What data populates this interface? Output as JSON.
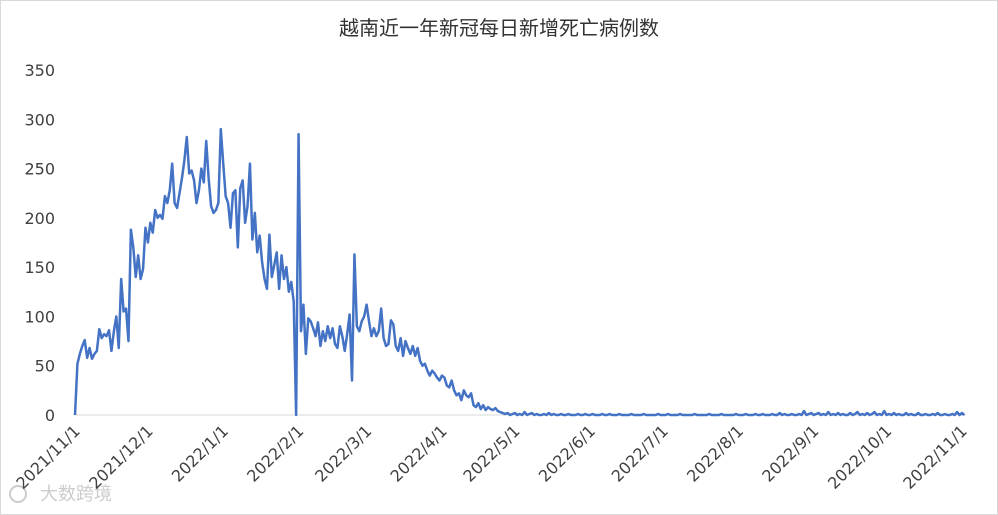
{
  "chart_data": {
    "type": "line",
    "title": "越南近一年新冠每日新增死亡病例数",
    "watermark": "大数跨境",
    "x": [
      "2021/11/1",
      "2021/11/2",
      "2021/11/3",
      "2021/11/4",
      "2021/11/5",
      "2021/11/6",
      "2021/11/7",
      "2021/11/8",
      "2021/11/9",
      "2021/11/10",
      "2021/11/11",
      "2021/11/12",
      "2021/11/13",
      "2021/11/14",
      "2021/11/15",
      "2021/11/16",
      "2021/11/17",
      "2021/11/18",
      "2021/11/19",
      "2021/11/20",
      "2021/11/21",
      "2021/11/22",
      "2021/11/23",
      "2021/11/24",
      "2021/11/25",
      "2021/11/26",
      "2021/11/27",
      "2021/11/28",
      "2021/11/29",
      "2021/11/30",
      "2021/12/1",
      "2021/12/2",
      "2021/12/3",
      "2021/12/4",
      "2021/12/5",
      "2021/12/6",
      "2021/12/7",
      "2021/12/8",
      "2021/12/9",
      "2021/12/10",
      "2021/12/11",
      "2021/12/12",
      "2021/12/13",
      "2021/12/14",
      "2021/12/15",
      "2021/12/16",
      "2021/12/17",
      "2021/12/18",
      "2021/12/19",
      "2021/12/20",
      "2021/12/21",
      "2021/12/22",
      "2021/12/23",
      "2021/12/24",
      "2021/12/25",
      "2021/12/26",
      "2021/12/27",
      "2021/12/28",
      "2021/12/29",
      "2021/12/30",
      "2021/12/31",
      "2022/1/1",
      "2022/1/2",
      "2022/1/3",
      "2022/1/4",
      "2022/1/5",
      "2022/1/6",
      "2022/1/7",
      "2022/1/8",
      "2022/1/9",
      "2022/1/10",
      "2022/1/11",
      "2022/1/12",
      "2022/1/13",
      "2022/1/14",
      "2022/1/15",
      "2022/1/16",
      "2022/1/17",
      "2022/1/18",
      "2022/1/19",
      "2022/1/20",
      "2022/1/21",
      "2022/1/22",
      "2022/1/23",
      "2022/1/24",
      "2022/1/25",
      "2022/1/26",
      "2022/1/27",
      "2022/1/28",
      "2022/1/29",
      "2022/1/30",
      "2022/1/31",
      "2022/2/1",
      "2022/2/2",
      "2022/2/3",
      "2022/2/4",
      "2022/2/5",
      "2022/2/6",
      "2022/2/7",
      "2022/2/8",
      "2022/2/9",
      "2022/2/10",
      "2022/2/11",
      "2022/2/12",
      "2022/2/13",
      "2022/2/14",
      "2022/2/15",
      "2022/2/16",
      "2022/2/17",
      "2022/2/18",
      "2022/2/19",
      "2022/2/20",
      "2022/2/21",
      "2022/2/22",
      "2022/2/23",
      "2022/2/24",
      "2022/2/25",
      "2022/2/26",
      "2022/2/27",
      "2022/2/28",
      "2022/3/1",
      "2022/3/2",
      "2022/3/3",
      "2022/3/4",
      "2022/3/5",
      "2022/3/6",
      "2022/3/7",
      "2022/3/8",
      "2022/3/9",
      "2022/3/10",
      "2022/3/11",
      "2022/3/12",
      "2022/3/13",
      "2022/3/14",
      "2022/3/15",
      "2022/3/16",
      "2022/3/17",
      "2022/3/18",
      "2022/3/19",
      "2022/3/20",
      "2022/3/21",
      "2022/3/22",
      "2022/3/23",
      "2022/3/24",
      "2022/3/25",
      "2022/3/26",
      "2022/3/27",
      "2022/3/28",
      "2022/3/29",
      "2022/3/30",
      "2022/3/31",
      "2022/4/1",
      "2022/4/2",
      "2022/4/3",
      "2022/4/4",
      "2022/4/5",
      "2022/4/6",
      "2022/4/7",
      "2022/4/8",
      "2022/4/9",
      "2022/4/10",
      "2022/4/11",
      "2022/4/12",
      "2022/4/13",
      "2022/4/14",
      "2022/4/15",
      "2022/4/16",
      "2022/4/17",
      "2022/4/18",
      "2022/4/19",
      "2022/4/20",
      "2022/4/21",
      "2022/4/22",
      "2022/4/23",
      "2022/4/24",
      "2022/4/25",
      "2022/4/26",
      "2022/4/27",
      "2022/4/28",
      "2022/4/29",
      "2022/4/30",
      "2022/5/1",
      "2022/5/2",
      "2022/5/3",
      "2022/5/4",
      "2022/5/5",
      "2022/5/6",
      "2022/5/7",
      "2022/5/8",
      "2022/5/9",
      "2022/5/10",
      "2022/5/11",
      "2022/5/12",
      "2022/5/13",
      "2022/5/14",
      "2022/5/15",
      "2022/5/16",
      "2022/5/17",
      "2022/5/18",
      "2022/5/19",
      "2022/5/20",
      "2022/5/21",
      "2022/5/22",
      "2022/5/23",
      "2022/5/24",
      "2022/5/25",
      "2022/5/26",
      "2022/5/27",
      "2022/5/28",
      "2022/5/29",
      "2022/5/30",
      "2022/5/31",
      "2022/6/1",
      "2022/6/2",
      "2022/6/3",
      "2022/6/4",
      "2022/6/5",
      "2022/6/6",
      "2022/6/7",
      "2022/6/8",
      "2022/6/9",
      "2022/6/10",
      "2022/6/11",
      "2022/6/12",
      "2022/6/13",
      "2022/6/14",
      "2022/6/15",
      "2022/6/16",
      "2022/6/17",
      "2022/6/18",
      "2022/6/19",
      "2022/6/20",
      "2022/6/21",
      "2022/6/22",
      "2022/6/23",
      "2022/6/24",
      "2022/6/25",
      "2022/6/26",
      "2022/6/27",
      "2022/6/28",
      "2022/6/29",
      "2022/6/30",
      "2022/7/1",
      "2022/7/2",
      "2022/7/3",
      "2022/7/4",
      "2022/7/5",
      "2022/7/6",
      "2022/7/7",
      "2022/7/8",
      "2022/7/9",
      "2022/7/10",
      "2022/7/11",
      "2022/7/12",
      "2022/7/13",
      "2022/7/14",
      "2022/7/15",
      "2022/7/16",
      "2022/7/17",
      "2022/7/18",
      "2022/7/19",
      "2022/7/20",
      "2022/7/21",
      "2022/7/22",
      "2022/7/23",
      "2022/7/24",
      "2022/7/25",
      "2022/7/26",
      "2022/7/27",
      "2022/7/28",
      "2022/7/29",
      "2022/7/30",
      "2022/7/31",
      "2022/8/1",
      "2022/8/2",
      "2022/8/3",
      "2022/8/4",
      "2022/8/5",
      "2022/8/6",
      "2022/8/7",
      "2022/8/8",
      "2022/8/9",
      "2022/8/10",
      "2022/8/11",
      "2022/8/12",
      "2022/8/13",
      "2022/8/14",
      "2022/8/15",
      "2022/8/16",
      "2022/8/17",
      "2022/8/18",
      "2022/8/19",
      "2022/8/20",
      "2022/8/21",
      "2022/8/22",
      "2022/8/23",
      "2022/8/24",
      "2022/8/25",
      "2022/8/26",
      "2022/8/27",
      "2022/8/28",
      "2022/8/29",
      "2022/8/30",
      "2022/8/31",
      "2022/9/1",
      "2022/9/2",
      "2022/9/3",
      "2022/9/4",
      "2022/9/5",
      "2022/9/6",
      "2022/9/7",
      "2022/9/8",
      "2022/9/9",
      "2022/9/10",
      "2022/9/11",
      "2022/9/12",
      "2022/9/13",
      "2022/9/14",
      "2022/9/15",
      "2022/9/16",
      "2022/9/17",
      "2022/9/18",
      "2022/9/19",
      "2022/9/20",
      "2022/9/21",
      "2022/9/22",
      "2022/9/23",
      "2022/9/24",
      "2022/9/25",
      "2022/9/26",
      "2022/9/27",
      "2022/9/28",
      "2022/9/29",
      "2022/9/30",
      "2022/10/1",
      "2022/10/2",
      "2022/10/3",
      "2022/10/4",
      "2022/10/5",
      "2022/10/6",
      "2022/10/7",
      "2022/10/8",
      "2022/10/9",
      "2022/10/10",
      "2022/10/11",
      "2022/10/12",
      "2022/10/13",
      "2022/10/14",
      "2022/10/15",
      "2022/10/16",
      "2022/10/17",
      "2022/10/18",
      "2022/10/19",
      "2022/10/20",
      "2022/10/21",
      "2022/10/22",
      "2022/10/23",
      "2022/10/24",
      "2022/10/25",
      "2022/10/26",
      "2022/10/27",
      "2022/10/28",
      "2022/10/29",
      "2022/10/30",
      "2022/10/31",
      "2022/11/1",
      "2022/11/2"
    ],
    "series": [
      {
        "color": "#4472c4",
        "values": [
          0,
          52,
          62,
          70,
          76,
          58,
          68,
          57,
          62,
          65,
          87,
          78,
          82,
          80,
          86,
          65,
          85,
          100,
          68,
          138,
          105,
          108,
          75,
          188,
          170,
          140,
          162,
          138,
          148,
          190,
          175,
          195,
          185,
          208,
          200,
          203,
          199,
          222,
          215,
          228,
          255,
          215,
          210,
          225,
          240,
          258,
          282,
          245,
          248,
          238,
          215,
          228,
          250,
          236,
          278,
          240,
          212,
          205,
          208,
          215,
          290,
          255,
          222,
          215,
          190,
          225,
          228,
          170,
          230,
          238,
          195,
          212,
          255,
          178,
          205,
          165,
          182,
          155,
          138,
          128,
          183,
          140,
          152,
          165,
          128,
          162,
          138,
          150,
          125,
          135,
          115,
          0,
          285,
          85,
          112,
          62,
          98,
          95,
          88,
          80,
          94,
          70,
          85,
          75,
          90,
          78,
          88,
          72,
          68,
          90,
          80,
          65,
          82,
          102,
          35,
          163,
          90,
          85,
          95,
          100,
          112,
          95,
          80,
          88,
          80,
          85,
          108,
          78,
          70,
          72,
          96,
          92,
          70,
          65,
          78,
          60,
          75,
          68,
          62,
          70,
          60,
          68,
          55,
          50,
          52,
          45,
          40,
          45,
          42,
          38,
          35,
          40,
          38,
          30,
          28,
          35,
          25,
          20,
          22,
          15,
          25,
          20,
          18,
          22,
          10,
          8,
          12,
          6,
          10,
          5,
          8,
          6,
          5,
          7,
          4,
          3,
          2,
          1,
          2,
          0,
          1,
          2,
          0,
          1,
          0,
          3,
          0,
          1,
          2,
          0,
          1,
          0,
          0,
          1,
          0,
          2,
          0,
          1,
          0,
          0,
          1,
          0,
          0,
          1,
          0,
          0,
          0,
          1,
          0,
          0,
          1,
          0,
          0,
          1,
          0,
          0,
          0,
          1,
          0,
          0,
          1,
          0,
          0,
          0,
          1,
          0,
          0,
          0,
          0,
          1,
          0,
          0,
          0,
          0,
          1,
          0,
          0,
          0,
          0,
          0,
          1,
          0,
          0,
          0,
          1,
          0,
          0,
          0,
          0,
          1,
          0,
          0,
          0,
          0,
          0,
          1,
          0,
          0,
          0,
          0,
          0,
          1,
          0,
          0,
          0,
          0,
          1,
          0,
          0,
          0,
          0,
          0,
          1,
          0,
          0,
          0,
          1,
          0,
          0,
          0,
          1,
          0,
          0,
          1,
          0,
          0,
          0,
          1,
          0,
          0,
          2,
          0,
          1,
          0,
          0,
          1,
          0,
          0,
          1,
          0,
          4,
          0,
          1,
          2,
          0,
          1,
          2,
          0,
          1,
          0,
          3,
          0,
          1,
          0,
          2,
          0,
          1,
          0,
          0,
          2,
          0,
          1,
          3,
          0,
          1,
          0,
          2,
          0,
          1,
          3,
          0,
          1,
          0,
          4,
          0,
          1,
          0,
          2,
          0,
          1,
          0,
          0,
          2,
          0,
          1,
          0,
          0,
          2,
          0,
          0,
          1,
          0,
          0,
          1,
          0,
          2,
          0,
          0,
          1,
          0,
          0,
          1,
          0,
          3,
          0,
          2,
          0
        ]
      }
    ],
    "xticks": [
      "2021/11/1",
      "2021/12/1",
      "2022/1/1",
      "2022/2/1",
      "2022/3/1",
      "2022/4/1",
      "2022/5/1",
      "2022/6/1",
      "2022/7/1",
      "2022/8/1",
      "2022/9/1",
      "2022/10/1",
      "2022/11/1"
    ],
    "ylim": [
      0,
      350
    ],
    "yticks": [
      0,
      50,
      100,
      150,
      200,
      250,
      300,
      350
    ],
    "grid": false
  }
}
